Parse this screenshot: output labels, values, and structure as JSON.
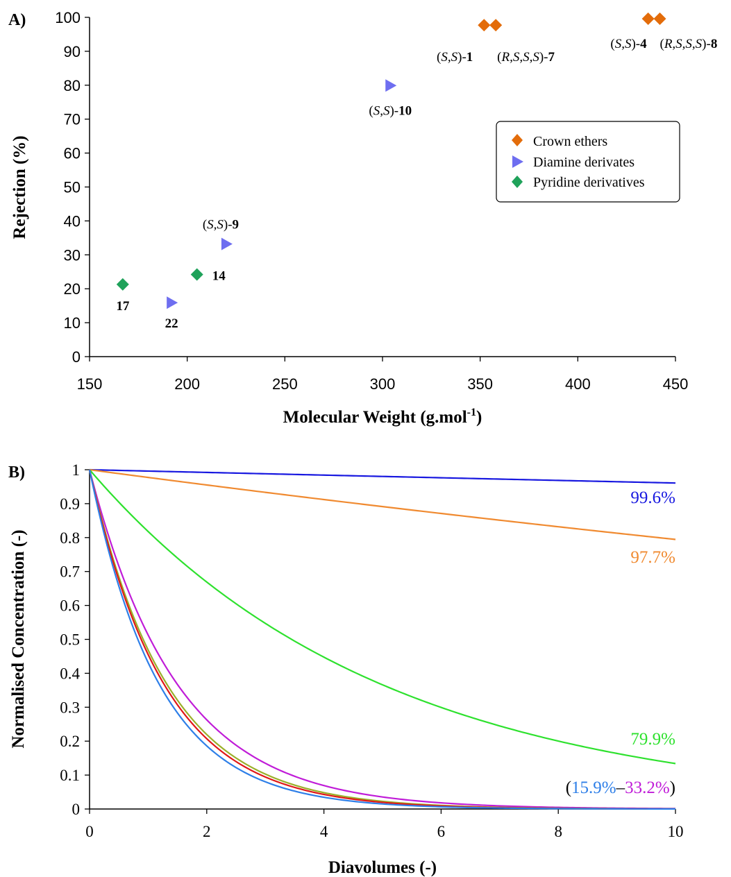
{
  "colors": {
    "crown": "#E36C0A",
    "diamine": "#6E6EF0",
    "pyridine": "#1FA25A",
    "line_blue": "#1818E0",
    "line_orange": "#F08A30",
    "line_green": "#2EE12E",
    "line_lightblue": "#2E7FE8",
    "line_red": "#E01818",
    "line_olive": "#9AB02A",
    "line_magenta": "#C01CD8"
  },
  "chart_data": [
    {
      "panel_label": "A)",
      "type": "scatter",
      "xlabel_main": "Molecular Weight (g.mol",
      "xlabel_sup": "-1",
      "xlabel_end": ")",
      "ylabel": "Rejection (%)",
      "xlim": [
        150,
        450
      ],
      "ylim": [
        0,
        100
      ],
      "xticks": [
        "150",
        "200",
        "250",
        "300",
        "350",
        "400",
        "450"
      ],
      "yticks": [
        "0",
        "10",
        "20",
        "30",
        "40",
        "50",
        "60",
        "70",
        "80",
        "90",
        "100"
      ],
      "legend": {
        "placement": "upper-right",
        "items": [
          "Crown ethers",
          "Diamine derivates",
          "Pyridine derivatives"
        ]
      },
      "series": [
        {
          "name": "Crown ethers",
          "marker": "diamond",
          "points": [
            {
              "x": 352,
              "y": 97.7,
              "pre": "(",
              "it": "S,S",
              "post": ")-",
              "num": "1"
            },
            {
              "x": 358,
              "y": 97.7,
              "pre": "(",
              "it": "R,S,S,S",
              "post": ")-",
              "num": "7"
            },
            {
              "x": 436,
              "y": 99.6,
              "pre": "(",
              "it": "S,S",
              "post": ")-",
              "num": "4"
            },
            {
              "x": 442,
              "y": 99.6,
              "pre": "(",
              "it": "R,S,S,S",
              "post": ")-",
              "num": "8"
            }
          ]
        },
        {
          "name": "Diamine derivates",
          "marker": "triangle",
          "points": [
            {
              "x": 304,
              "y": 79.9,
              "pre": "(",
              "it": "S,S",
              "post": ")-",
              "num": "10"
            },
            {
              "x": 220,
              "y": 33.2,
              "pre": "(",
              "it": "S,S",
              "post": ")-",
              "num": "9"
            },
            {
              "x": 192,
              "y": 15.9,
              "pre": "",
              "it": "",
              "post": "",
              "num": "22"
            }
          ]
        },
        {
          "name": "Pyridine derivatives",
          "marker": "diamond",
          "points": [
            {
              "x": 167,
              "y": 21.3,
              "pre": "",
              "it": "",
              "post": "",
              "num": "17"
            },
            {
              "x": 205,
              "y": 24.2,
              "pre": "",
              "it": "",
              "post": "",
              "num": "14"
            }
          ]
        }
      ]
    },
    {
      "panel_label": "B)",
      "type": "line",
      "xlabel": "Diavolumes (-)",
      "ylabel": "Normalised Concentration (-)",
      "xlim": [
        0,
        10
      ],
      "ylim": [
        0,
        1
      ],
      "xticks": [
        "0",
        "2",
        "4",
        "6",
        "8",
        "10"
      ],
      "yticks": [
        "0",
        "0.1",
        "0.2",
        "0.3",
        "0.4",
        "0.5",
        "0.6",
        "0.7",
        "0.8",
        "0.9",
        "1"
      ],
      "model": "C = exp(-(1 - R) * D)",
      "series": [
        {
          "rejection": 0.996,
          "color_key": "line_blue"
        },
        {
          "rejection": 0.977,
          "color_key": "line_orange"
        },
        {
          "rejection": 0.799,
          "color_key": "line_green"
        },
        {
          "rejection": 0.332,
          "color_key": "line_magenta"
        },
        {
          "rejection": 0.242,
          "color_key": "line_olive"
        },
        {
          "rejection": 0.213,
          "color_key": "line_red"
        },
        {
          "rejection": 0.159,
          "color_key": "line_lightblue"
        }
      ],
      "annotations": {
        "a1": "99.6%",
        "a2": "97.7%",
        "a3": "79.9%",
        "range_open": "(",
        "range_low": "15.9%",
        "range_dash": "–",
        "range_high": "33.2%",
        "range_close": ")"
      }
    }
  ]
}
